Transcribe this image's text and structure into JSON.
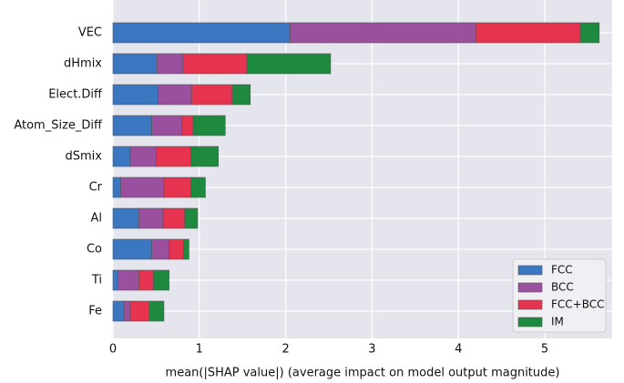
{
  "chart_data": {
    "type": "bar",
    "orientation": "horizontal",
    "stacked": true,
    "xlabel": "mean(|SHAP value|) (average impact on model output magnitude)",
    "categories": [
      "VEC",
      "dHmix",
      "Elect.Diff",
      "Atom_Size_Diff",
      "dSmix",
      "Cr",
      "Al",
      "Co",
      "Ti",
      "Fe"
    ],
    "series": [
      {
        "name": "FCC",
        "color": "#3a77c0",
        "values": [
          2.05,
          0.51,
          0.52,
          0.45,
          0.2,
          0.09,
          0.3,
          0.45,
          0.06,
          0.13
        ]
      },
      {
        "name": "BCC",
        "color": "#9a4f9f",
        "values": [
          2.15,
          0.3,
          0.39,
          0.35,
          0.3,
          0.5,
          0.28,
          0.2,
          0.24,
          0.07
        ]
      },
      {
        "name": "FCC+BCC",
        "color": "#e6334f",
        "values": [
          1.21,
          0.74,
          0.47,
          0.13,
          0.4,
          0.31,
          0.25,
          0.17,
          0.17,
          0.22
        ]
      },
      {
        "name": "IM",
        "color": "#1e8a3f",
        "values": [
          0.22,
          0.97,
          0.21,
          0.37,
          0.32,
          0.17,
          0.15,
          0.06,
          0.18,
          0.17
        ]
      }
    ],
    "xlim": [
      0,
      5.78
    ],
    "xticks": [
      0,
      1,
      2,
      3,
      4,
      5
    ],
    "grid": true,
    "legend": "lower right"
  }
}
